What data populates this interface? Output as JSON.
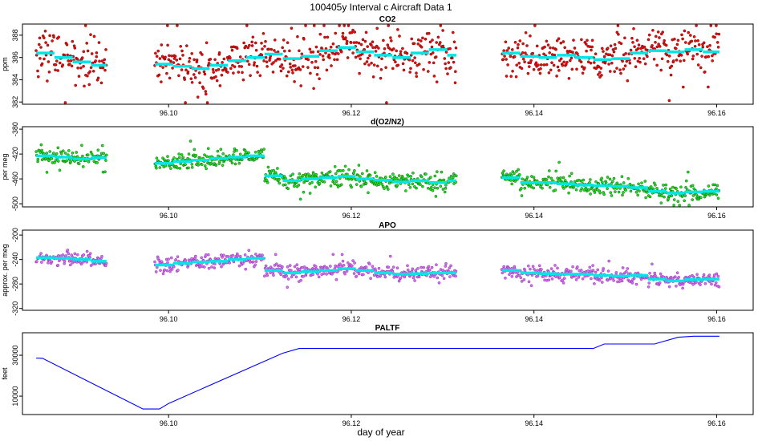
{
  "title": "100405y   Interval c Aircraft Data 1",
  "xlabel": "day of year",
  "colors": {
    "co2_fill": "#e01010",
    "co2_edge": "#7a0000",
    "o2_fill": "#22dd22",
    "o2_edge": "#0a5a0a",
    "apo_fill": "#d070f0",
    "apo_edge": "#8a2aa0",
    "mean": "#00e5e5",
    "altitude": "#0000ff",
    "frame": "#000000"
  },
  "chart_data": [
    {
      "type": "scatter",
      "title": "CO2",
      "ylabel": "ppm",
      "xlim": [
        96.084,
        96.164
      ],
      "ylim": [
        381.8,
        389.0
      ],
      "yticks": [
        "382",
        "384",
        "386",
        "388"
      ],
      "xticks": [
        "96.10",
        "96.12",
        "96.14",
        "96.16"
      ],
      "series": [
        {
          "name": "CO2 measurements",
          "noise": 1.0,
          "segments": [
            [
              96.0855,
              96.0932
            ],
            [
              96.0985,
              96.1315
            ],
            [
              96.1365,
              96.1603
            ]
          ]
        },
        {
          "name": "CO2 mean",
          "steps": [
            [
              96.0855,
              96.0875,
              386.4
            ],
            [
              96.0875,
              96.0895,
              386.0
            ],
            [
              96.0895,
              96.0915,
              385.6
            ],
            [
              96.0915,
              96.0932,
              385.3
            ],
            [
              96.0985,
              96.1005,
              385.4
            ],
            [
              96.1005,
              96.1025,
              385.2
            ],
            [
              96.1025,
              96.1045,
              385.0
            ],
            [
              96.1045,
              96.1065,
              385.3
            ],
            [
              96.1065,
              96.1085,
              385.7
            ],
            [
              96.1085,
              96.1105,
              386.0
            ],
            [
              96.1105,
              96.1125,
              386.3
            ],
            [
              96.1125,
              96.1145,
              385.9
            ],
            [
              96.1145,
              96.1165,
              386.1
            ],
            [
              96.1165,
              96.1185,
              386.6
            ],
            [
              96.1185,
              96.1205,
              386.9
            ],
            [
              96.1205,
              96.1225,
              386.5
            ],
            [
              96.1225,
              96.1245,
              386.2
            ],
            [
              96.1245,
              96.1265,
              386.0
            ],
            [
              96.1265,
              96.1285,
              386.4
            ],
            [
              96.1285,
              96.1305,
              386.7
            ],
            [
              96.1305,
              96.1315,
              386.2
            ],
            [
              96.1365,
              96.1385,
              386.4
            ],
            [
              96.1385,
              96.1405,
              386.1
            ],
            [
              96.1405,
              96.1425,
              386.0
            ],
            [
              96.1425,
              96.1445,
              386.2
            ],
            [
              96.1445,
              96.1465,
              386.0
            ],
            [
              96.1465,
              96.1485,
              385.8
            ],
            [
              96.1485,
              96.1505,
              385.9
            ],
            [
              96.1505,
              96.1525,
              386.4
            ],
            [
              96.1525,
              96.1545,
              386.6
            ],
            [
              96.1545,
              96.1565,
              386.5
            ],
            [
              96.1565,
              96.1585,
              386.7
            ],
            [
              96.1585,
              96.1603,
              386.5
            ]
          ]
        }
      ]
    },
    {
      "type": "scatter",
      "title": "d(O2/N2)",
      "ylabel": "per meg",
      "xlim": [
        96.084,
        96.164
      ],
      "ylim": [
        -505,
        -376
      ],
      "yticks": [
        "-380",
        "-420",
        "-460",
        "-500"
      ],
      "xticks": [
        "96.10",
        "96.12",
        "96.14",
        "96.16"
      ],
      "series": [
        {
          "name": "O2/N2 measurements",
          "noise": 7,
          "segments": [
            [
              96.0855,
              96.0932
            ],
            [
              96.0985,
              96.1315
            ],
            [
              96.1365,
              96.1603
            ]
          ]
        },
        {
          "name": "O2/N2 mean",
          "steps": [
            [
              96.0855,
              96.0875,
              -423
            ],
            [
              96.0875,
              96.0895,
              -425
            ],
            [
              96.0895,
              96.0915,
              -428
            ],
            [
              96.0915,
              96.0932,
              -426
            ],
            [
              96.0985,
              96.1005,
              -435
            ],
            [
              96.1005,
              96.1025,
              -432
            ],
            [
              96.1025,
              96.1045,
              -430
            ],
            [
              96.1045,
              96.1065,
              -427
            ],
            [
              96.1065,
              96.1085,
              -425
            ],
            [
              96.1085,
              96.1105,
              -423
            ],
            [
              96.1105,
              96.1125,
              -455
            ],
            [
              96.1125,
              96.1145,
              -463
            ],
            [
              96.1145,
              96.1165,
              -460
            ],
            [
              96.1165,
              96.1185,
              -458
            ],
            [
              96.1185,
              96.1205,
              -456
            ],
            [
              96.1205,
              96.1225,
              -460
            ],
            [
              96.1225,
              96.1245,
              -462
            ],
            [
              96.1245,
              96.1265,
              -465
            ],
            [
              96.1265,
              96.1285,
              -463
            ],
            [
              96.1285,
              96.1305,
              -466
            ],
            [
              96.1305,
              96.1315,
              -463
            ],
            [
              96.1365,
              96.1385,
              -458
            ],
            [
              96.1385,
              96.1405,
              -466
            ],
            [
              96.1405,
              96.1425,
              -466
            ],
            [
              96.1425,
              96.1445,
              -468
            ],
            [
              96.1445,
              96.1465,
              -470
            ],
            [
              96.1465,
              96.1485,
              -471
            ],
            [
              96.1485,
              96.1505,
              -472
            ],
            [
              96.1505,
              96.1525,
              -474
            ],
            [
              96.1525,
              96.1545,
              -480
            ],
            [
              96.1545,
              96.1565,
              -483
            ],
            [
              96.1565,
              96.1585,
              -481
            ],
            [
              96.1585,
              96.1603,
              -480
            ]
          ]
        }
      ]
    },
    {
      "type": "scatter",
      "title": "APO",
      "ylabel": "approx. per meg",
      "xlim": [
        96.084,
        96.164
      ],
      "ylim": [
        -323,
        -192
      ],
      "yticks": [
        "-200",
        "-240",
        "-280",
        "-320"
      ],
      "xticks": [
        "96.10",
        "96.12",
        "96.14",
        "96.16"
      ],
      "series": [
        {
          "name": "APO measurements",
          "noise": 6,
          "segments": [
            [
              96.0855,
              96.0932
            ],
            [
              96.0985,
              96.1315
            ],
            [
              96.1365,
              96.1603
            ]
          ]
        },
        {
          "name": "APO mean",
          "steps": [
            [
              96.0855,
              96.0875,
              -237
            ],
            [
              96.0875,
              96.0895,
              -238
            ],
            [
              96.0895,
              96.0915,
              -240
            ],
            [
              96.0915,
              96.0932,
              -243
            ],
            [
              96.0985,
              96.1005,
              -249
            ],
            [
              96.1005,
              96.1025,
              -246
            ],
            [
              96.1025,
              96.1045,
              -244
            ],
            [
              96.1045,
              96.1065,
              -243
            ],
            [
              96.1065,
              96.1085,
              -240
            ],
            [
              96.1085,
              96.1105,
              -238
            ],
            [
              96.1105,
              96.1125,
              -258
            ],
            [
              96.1125,
              96.1145,
              -262
            ],
            [
              96.1145,
              96.1165,
              -260
            ],
            [
              96.1165,
              96.1185,
              -258
            ],
            [
              96.1185,
              96.1205,
              -255
            ],
            [
              96.1205,
              96.1225,
              -258
            ],
            [
              96.1225,
              96.1245,
              -262
            ],
            [
              96.1245,
              96.1265,
              -264
            ],
            [
              96.1265,
              96.1285,
              -263
            ],
            [
              96.1285,
              96.1305,
              -262
            ],
            [
              96.1305,
              96.1315,
              -262
            ],
            [
              96.1365,
              96.1385,
              -258
            ],
            [
              96.1385,
              96.1405,
              -262
            ],
            [
              96.1405,
              96.1425,
              -263
            ],
            [
              96.1425,
              96.1445,
              -264
            ],
            [
              96.1445,
              96.1465,
              -264
            ],
            [
              96.1465,
              96.1485,
              -266
            ],
            [
              96.1485,
              96.1505,
              -267
            ],
            [
              96.1505,
              96.1525,
              -266
            ],
            [
              96.1525,
              96.1545,
              -272
            ],
            [
              96.1545,
              96.1565,
              -275
            ],
            [
              96.1565,
              96.1585,
              -273
            ],
            [
              96.1585,
              96.1603,
              -272
            ]
          ]
        }
      ]
    },
    {
      "type": "line",
      "title": "PALTF",
      "ylabel": "feet",
      "xlim": [
        96.084,
        96.164
      ],
      "ylim": [
        1000,
        41000
      ],
      "yticks": [
        "10000",
        "30000"
      ],
      "xticks": [
        "96.10",
        "96.12",
        "96.14",
        "96.16"
      ],
      "series": [
        {
          "name": "PALTF",
          "points": [
            [
              96.0855,
              28600
            ],
            [
              96.0862,
              28500
            ],
            [
              96.0972,
              3700
            ],
            [
              96.099,
              3700
            ],
            [
              96.1,
              6400
            ],
            [
              96.1125,
              31000
            ],
            [
              96.1143,
              33300
            ],
            [
              96.1465,
              33300
            ],
            [
              96.1477,
              35500
            ],
            [
              96.1532,
              35500
            ],
            [
              96.1558,
              38800
            ],
            [
              96.1575,
              39300
            ],
            [
              96.1603,
              39300
            ]
          ]
        }
      ]
    }
  ]
}
